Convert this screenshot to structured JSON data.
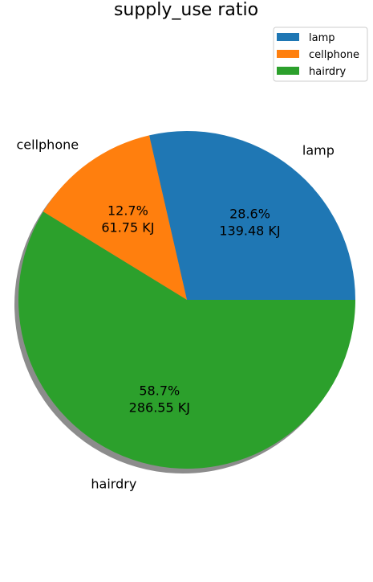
{
  "chart_data": {
    "type": "pie",
    "title": "supply_use ratio",
    "unit": "KJ",
    "categories": [
      "lamp",
      "cellphone",
      "hairdry"
    ],
    "values": [
      139.48,
      61.75,
      286.55
    ],
    "percent_labels": [
      "28.6%",
      "12.7%",
      "58.7%"
    ],
    "value_labels": [
      "139.48 KJ",
      "61.75 KJ",
      "286.55 KJ"
    ],
    "colors": [
      "#1f77b4",
      "#ff7f0e",
      "#2ca02c"
    ],
    "start_angle_deg": 0,
    "direction": "counterclockwise",
    "shadow": true,
    "legend": {
      "placement": "upper-right",
      "entries": [
        "lamp",
        "cellphone",
        "hairdry"
      ]
    }
  }
}
